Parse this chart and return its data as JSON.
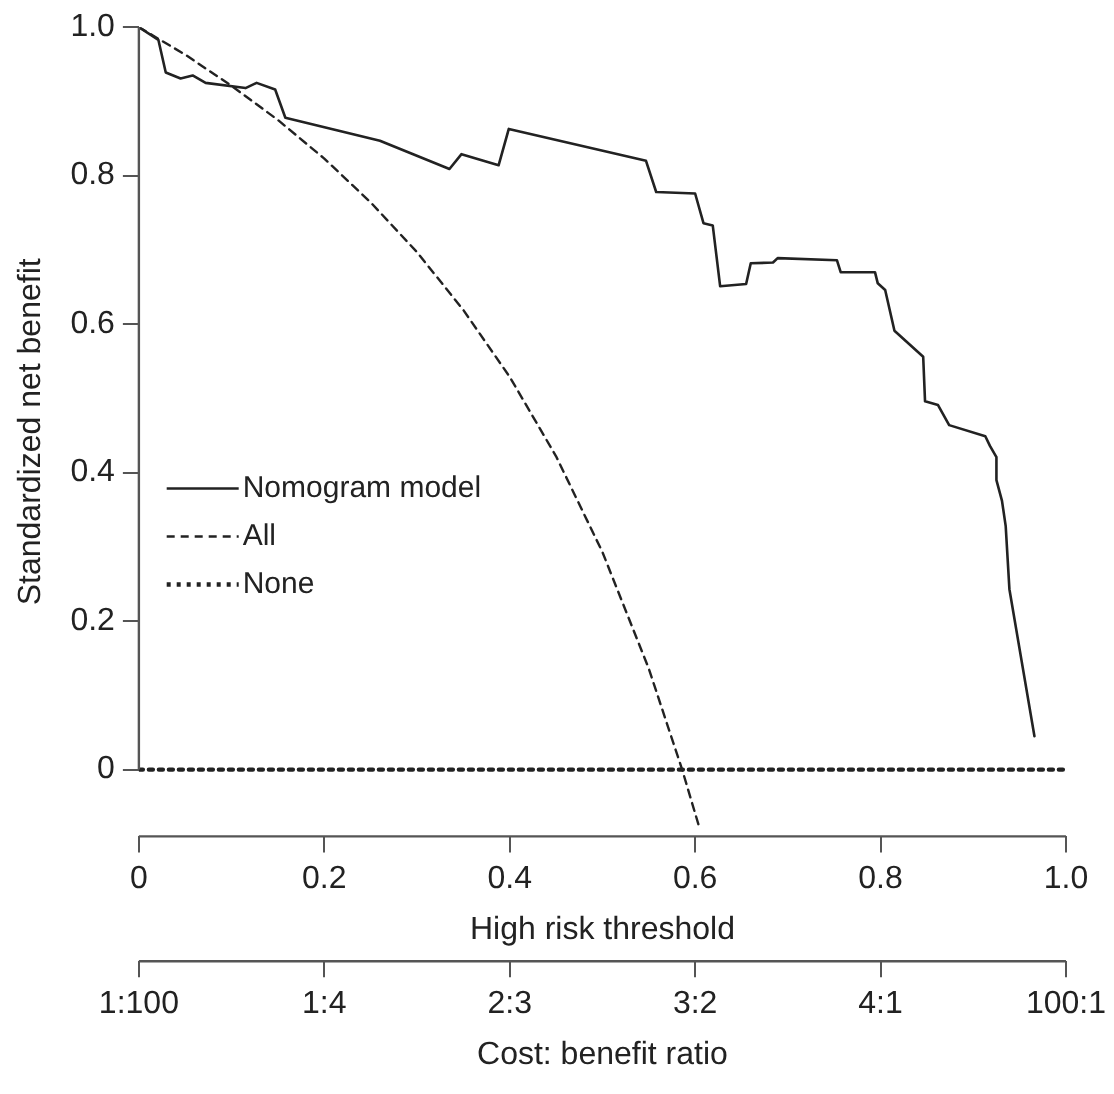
{
  "chart_data": {
    "type": "line",
    "xlabel": "High risk threshold",
    "ylabel": "Standardized net benefit",
    "x2label": "Cost: benefit ratio",
    "xlim": [
      0,
      1.0
    ],
    "xticks": [
      0,
      0.2,
      0.4,
      0.6,
      0.8,
      {
        "value": 1,
        "label": "1.0"
      }
    ],
    "annotations": [
      "1:100",
      "1:4",
      "2:3",
      "3:2",
      "4:1",
      "100:1"
    ],
    "ylim": [
      -0.09,
      1.0
    ],
    "yticks": [
      0,
      0.2,
      0.4,
      0.6,
      0.8,
      {
        "value": 1,
        "label": "1.0"
      }
    ],
    "grid": false,
    "legend": "left",
    "marker": "none",
    "series": [
      {
        "name": "Nomogram model",
        "color": "#222222",
        "line_style": "solid",
        "x": [
          0,
          0.021,
          0.029,
          0.045,
          0.058,
          0.072,
          0.115,
          0.127,
          0.147,
          0.158,
          0.26,
          0.335,
          0.348,
          0.388,
          0.399,
          0.547,
          0.558,
          0.6,
          0.609,
          0.619,
          0.627,
          0.655,
          0.66,
          0.684,
          0.689,
          0.753,
          0.757,
          0.794,
          0.797,
          0.805,
          0.815,
          0.846,
          0.848,
          0.862,
          0.874,
          0.913,
          0.918,
          0.925,
          0.925,
          0.931,
          0.935,
          0.939,
          0.966
        ],
        "values": [
          1.0,
          0.983,
          0.939,
          0.931,
          0.935,
          0.925,
          0.918,
          0.925,
          0.916,
          0.878,
          0.847,
          0.809,
          0.829,
          0.814,
          0.863,
          0.82,
          0.778,
          0.776,
          0.736,
          0.733,
          0.651,
          0.654,
          0.682,
          0.683,
          0.689,
          0.686,
          0.67,
          0.67,
          0.655,
          0.646,
          0.591,
          0.556,
          0.496,
          0.491,
          0.464,
          0.449,
          0.436,
          0.421,
          0.39,
          0.362,
          0.328,
          0.243,
          0.045
        ]
      },
      {
        "name": "All",
        "color": "#222222",
        "line_style": "dashed",
        "x": [
          0,
          0.05,
          0.1,
          0.15,
          0.2,
          0.25,
          0.3,
          0.35,
          0.4,
          0.45,
          0.5,
          0.55,
          0.586,
          0.605
        ],
        "values": [
          1.0,
          0.963,
          0.921,
          0.875,
          0.823,
          0.764,
          0.697,
          0.619,
          0.529,
          0.422,
          0.293,
          0.136,
          0.0,
          -0.08
        ]
      },
      {
        "name": "None",
        "color": "#222222",
        "line_style": "dotted",
        "x": [
          0,
          1.0
        ],
        "values": [
          0,
          0
        ]
      }
    ]
  }
}
